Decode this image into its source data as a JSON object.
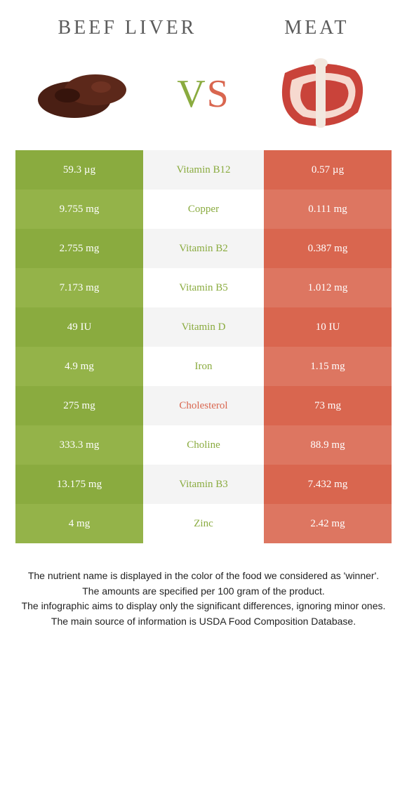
{
  "header": {
    "left_title": "Beef Liver",
    "right_title": "Meat"
  },
  "vs": {
    "v": "V",
    "s": "S"
  },
  "colors": {
    "left": [
      "#8aab3f",
      "#94b349"
    ],
    "mid": [
      "#f4f4f4",
      "#ffffff"
    ],
    "right": [
      "#d9664f",
      "#dd7661"
    ],
    "mid_text_left": "#8aab3f",
    "mid_text_right": "#d9664f",
    "row_text": "#ffffff"
  },
  "rows": [
    {
      "left": "59.3 µg",
      "name": "Vitamin B12",
      "right": "0.57 µg",
      "winner": "left"
    },
    {
      "left": "9.755 mg",
      "name": "Copper",
      "right": "0.111 mg",
      "winner": "left"
    },
    {
      "left": "2.755 mg",
      "name": "Vitamin B2",
      "right": "0.387 mg",
      "winner": "left"
    },
    {
      "left": "7.173 mg",
      "name": "Vitamin B5",
      "right": "1.012 mg",
      "winner": "left"
    },
    {
      "left": "49 IU",
      "name": "Vitamin D",
      "right": "10 IU",
      "winner": "left"
    },
    {
      "left": "4.9 mg",
      "name": "Iron",
      "right": "1.15 mg",
      "winner": "left"
    },
    {
      "left": "275 mg",
      "name": "Cholesterol",
      "right": "73 mg",
      "winner": "right"
    },
    {
      "left": "333.3 mg",
      "name": "Choline",
      "right": "88.9 mg",
      "winner": "left"
    },
    {
      "left": "13.175 mg",
      "name": "Vitamin B3",
      "right": "7.432 mg",
      "winner": "left"
    },
    {
      "left": "4 mg",
      "name": "Zinc",
      "right": "2.42 mg",
      "winner": "left"
    }
  ],
  "footnote": {
    "l1": "The nutrient name is displayed in the color of the food we considered as 'winner'.",
    "l2": "The amounts are specified per 100 gram of the product.",
    "l3": "The infographic aims to display only the significant differences, ignoring minor ones.",
    "l4": "The main source of information is USDA Food Composition Database."
  }
}
